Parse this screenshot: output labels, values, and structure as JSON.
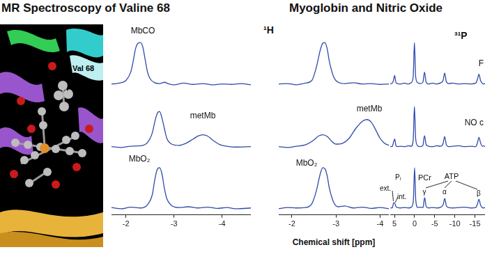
{
  "titles": [
    "MR Spectroscopy of Valine 68",
    "Myoglobin and Nitric Oxide"
  ],
  "structure_label": "Val 68",
  "chart_data": [
    {
      "type": "line",
      "title": "¹H",
      "color": "#2f4aa8",
      "xlim": [
        -1.7,
        -4.6
      ],
      "xticks": [
        -2,
        -3,
        -4
      ],
      "ylim": [
        -0.15,
        1.1
      ],
      "tick_labels": "x",
      "grid": false,
      "series": [
        {
          "name": "MbCO",
          "x": [
            -1.7,
            -1.8,
            -1.9,
            -2.0,
            -2.1,
            -2.15,
            -2.2,
            -2.25,
            -2.3,
            -2.35,
            -2.4,
            -2.45,
            -2.5,
            -2.6,
            -2.7,
            -2.8,
            -2.9,
            -3.0,
            -3.2,
            -3.4,
            -3.6,
            -3.8,
            -4.0,
            -4.2,
            -4.4,
            -4.6
          ],
          "values": [
            0.02,
            0.03,
            0.05,
            0.1,
            0.3,
            0.55,
            0.85,
            0.98,
            1.0,
            0.9,
            0.6,
            0.3,
            0.15,
            0.05,
            0.03,
            0.06,
            0.02,
            0.0,
            0.04,
            0.01,
            0.03,
            0.0,
            0.02,
            0.01,
            0.03,
            0.0
          ]
        },
        {
          "name": "metMb",
          "x": [
            -1.7,
            -1.9,
            -2.1,
            -2.3,
            -2.45,
            -2.55,
            -2.6,
            -2.65,
            -2.7,
            -2.75,
            -2.8,
            -2.85,
            -2.95,
            -3.1,
            -3.25,
            -3.4,
            -3.5,
            -3.6,
            -3.7,
            -3.8,
            -3.95,
            -4.1,
            -4.3,
            -4.6
          ],
          "values": [
            0.02,
            0.0,
            0.03,
            0.04,
            0.12,
            0.35,
            0.6,
            0.8,
            0.85,
            0.7,
            0.45,
            0.22,
            0.08,
            0.05,
            0.1,
            0.2,
            0.27,
            0.3,
            0.27,
            0.18,
            0.07,
            0.03,
            0.01,
            0.02
          ]
        },
        {
          "name": "MbO₂",
          "x": [
            -1.7,
            -1.9,
            -2.1,
            -2.3,
            -2.45,
            -2.55,
            -2.6,
            -2.65,
            -2.7,
            -2.75,
            -2.8,
            -2.85,
            -2.95,
            -3.1,
            -3.3,
            -3.5,
            -3.7,
            -3.9,
            -4.1,
            -4.3,
            -4.6
          ],
          "values": [
            0.03,
            0.0,
            0.04,
            0.02,
            0.1,
            0.35,
            0.7,
            0.95,
            1.0,
            0.85,
            0.5,
            0.25,
            0.08,
            0.03,
            0.05,
            0.02,
            0.04,
            0.01,
            0.03,
            0.0,
            0.02
          ]
        }
      ]
    },
    {
      "type": "line",
      "x_label": "Chemical shift [ppm]",
      "color": "#2f4aa8",
      "xlim": [
        -1.7,
        -4.2
      ],
      "xticks": [
        -2,
        -3,
        -4
      ],
      "ylim": [
        -0.15,
        1.1
      ],
      "tick_labels": "x",
      "grid": false,
      "series": [
        {
          "x": [
            -1.7,
            -1.9,
            -2.1,
            -2.3,
            -2.45,
            -2.55,
            -2.65,
            -2.7,
            -2.75,
            -2.8,
            -2.85,
            -2.95,
            -3.05,
            -3.2,
            -3.4,
            -3.6,
            -3.8,
            -4.0,
            -4.2
          ],
          "values": [
            0.02,
            0.03,
            0.0,
            0.04,
            0.1,
            0.4,
            0.85,
            0.98,
            1.0,
            0.85,
            0.55,
            0.18,
            0.06,
            0.03,
            0.05,
            0.02,
            0.03,
            0.01,
            0.02
          ]
        },
        {
          "name": "metMb",
          "x": [
            -1.7,
            -1.9,
            -2.1,
            -2.3,
            -2.5,
            -2.6,
            -2.7,
            -2.8,
            -2.9,
            -3.0,
            -3.15,
            -3.3,
            -3.45,
            -3.6,
            -3.7,
            -3.8,
            -3.9,
            -4.0,
            -4.1,
            -4.2
          ],
          "values": [
            0.02,
            0.0,
            0.03,
            0.06,
            0.18,
            0.27,
            0.3,
            0.26,
            0.15,
            0.08,
            0.1,
            0.22,
            0.45,
            0.62,
            0.66,
            0.6,
            0.42,
            0.22,
            0.1,
            0.05
          ]
        },
        {
          "name": "MbO₂",
          "x": [
            -1.7,
            -1.9,
            -2.1,
            -2.3,
            -2.45,
            -2.55,
            -2.65,
            -2.7,
            -2.75,
            -2.8,
            -2.85,
            -2.95,
            -3.05,
            -3.2,
            -3.4,
            -3.6,
            -3.8,
            -4.0,
            -4.2
          ],
          "values": [
            0.0,
            0.03,
            0.02,
            0.03,
            0.12,
            0.42,
            0.88,
            1.0,
            0.97,
            0.8,
            0.5,
            0.15,
            0.05,
            0.07,
            0.02,
            0.04,
            0.01,
            0.03,
            0.0
          ]
        }
      ]
    },
    {
      "type": "line",
      "title": "³¹P",
      "color": "#2f4aa8",
      "xlim": [
        6,
        -17.5
      ],
      "xticks": [
        5,
        0,
        -5,
        -10,
        -15
      ],
      "ylim": [
        -0.15,
        1.1
      ],
      "tick_labels": "x",
      "grid": false,
      "annotations": [
        "ext.",
        "Pᵢ",
        "int.",
        "PCr",
        "ATP",
        "γ",
        "α",
        "β"
      ],
      "series": [
        {
          "name": "F",
          "x": [
            6,
            5.5,
            5.2,
            4.9,
            4.6,
            4.2,
            3.5,
            2.5,
            1.5,
            0.8,
            0.3,
            0,
            -0.3,
            -0.8,
            -1.5,
            -2.1,
            -2.5,
            -2.9,
            -3.5,
            -4.5,
            -5.5,
            -6.5,
            -7.1,
            -7.5,
            -7.9,
            -8.5,
            -9.5,
            -11,
            -12.5,
            -14,
            -15.2,
            -15.6,
            -16,
            -16.4,
            -16.8,
            -17.1,
            -17.5
          ],
          "values": [
            0.02,
            0.04,
            0.1,
            0.22,
            0.06,
            0.03,
            0.02,
            0.04,
            0.02,
            0.05,
            0.2,
            1.0,
            0.2,
            0.05,
            0.03,
            0.06,
            0.3,
            0.06,
            0.02,
            0.04,
            0.02,
            0.05,
            0.1,
            0.28,
            0.08,
            0.03,
            0.04,
            0.02,
            0.03,
            0.02,
            0.04,
            0.12,
            0.25,
            0.1,
            0.04,
            0.02,
            0.03
          ]
        },
        {
          "name": "NO c",
          "x": [
            6,
            5.5,
            5.2,
            4.9,
            4.6,
            4.2,
            3.5,
            2.5,
            1.5,
            0.8,
            0.3,
            0,
            -0.3,
            -0.8,
            -1.5,
            -2.1,
            -2.5,
            -2.9,
            -3.5,
            -4.5,
            -5.5,
            -6.5,
            -7.1,
            -7.5,
            -7.9,
            -8.5,
            -9.5,
            -11,
            -12.5,
            -14,
            -15.2,
            -15.6,
            -16,
            -16.4,
            -16.8,
            -17.1,
            -17.5
          ],
          "values": [
            0.03,
            0.02,
            0.12,
            0.2,
            0.05,
            0.02,
            0.03,
            0.02,
            0.04,
            0.03,
            0.18,
            0.97,
            0.22,
            0.04,
            0.02,
            0.05,
            0.28,
            0.07,
            0.03,
            0.02,
            0.04,
            0.03,
            0.09,
            0.26,
            0.07,
            0.02,
            0.03,
            0.04,
            0.02,
            0.03,
            0.02,
            0.1,
            0.24,
            0.11,
            0.03,
            0.04,
            0.02
          ]
        },
        {
          "x": [
            6,
            5.5,
            5.2,
            4.9,
            4.6,
            4.2,
            3.5,
            2.5,
            1.5,
            0.8,
            0.3,
            0,
            -0.3,
            -0.8,
            -1.5,
            -2.1,
            -2.5,
            -2.9,
            -3.5,
            -4.5,
            -5.5,
            -6.5,
            -7.1,
            -7.5,
            -7.9,
            -8.5,
            -9.5,
            -11,
            -12.5,
            -14,
            -15.2,
            -15.6,
            -16,
            -16.4,
            -16.8,
            -17.1,
            -17.5
          ],
          "values": [
            0.02,
            0.03,
            0.15,
            0.13,
            0.05,
            0.03,
            0.02,
            0.03,
            0.02,
            0.04,
            0.2,
            1.0,
            0.21,
            0.03,
            0.04,
            0.03,
            0.27,
            0.05,
            0.02,
            0.03,
            0.02,
            0.04,
            0.1,
            0.25,
            0.07,
            0.03,
            0.02,
            0.03,
            0.04,
            0.02,
            0.03,
            0.11,
            0.23,
            0.09,
            0.03,
            0.02,
            0.03
          ]
        }
      ]
    }
  ]
}
